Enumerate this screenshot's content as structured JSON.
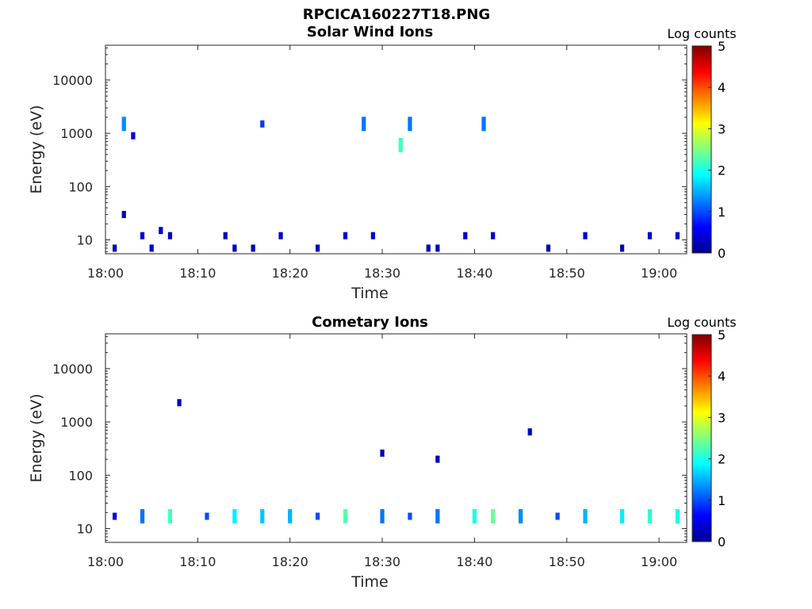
{
  "figure": {
    "title": "RPCICA160227T18.PNG"
  },
  "colorbar_label": "Log counts",
  "colorbar_ticks": [
    "0",
    "1",
    "2",
    "3",
    "4",
    "5"
  ],
  "chart_data": [
    {
      "type": "heatmap",
      "title": "Solar Wind Ions",
      "xlabel": "Time",
      "ylabel": "Energy (eV)",
      "yscale": "log",
      "ylim": [
        5.5,
        45000
      ],
      "xlim": [
        "18:00",
        "19:03"
      ],
      "xticks": [
        "18:00",
        "18:10",
        "18:20",
        "18:30",
        "18:40",
        "18:50",
        "19:00"
      ],
      "yticks": [
        "10",
        "100",
        "1000",
        "10000"
      ],
      "colorbar": {
        "label": "Log counts",
        "range": [
          0,
          5
        ]
      },
      "grid": false,
      "points": [
        {
          "t": "18:01",
          "e": 7,
          "c": 0.3
        },
        {
          "t": "18:02",
          "e": 30,
          "c": 0.3
        },
        {
          "t": "18:02",
          "e": 1500,
          "c": 1.3
        },
        {
          "t": "18:03",
          "e": 900,
          "c": 0.5
        },
        {
          "t": "18:04",
          "e": 12,
          "c": 0.4
        },
        {
          "t": "18:05",
          "e": 7,
          "c": 0.3
        },
        {
          "t": "18:06",
          "e": 15,
          "c": 0.4
        },
        {
          "t": "18:07",
          "e": 12,
          "c": 0.4
        },
        {
          "t": "18:13",
          "e": 12,
          "c": 0.3
        },
        {
          "t": "18:14",
          "e": 7,
          "c": 0.3
        },
        {
          "t": "18:16",
          "e": 7,
          "c": 0.3
        },
        {
          "t": "18:17",
          "e": 1500,
          "c": 0.9
        },
        {
          "t": "18:19",
          "e": 12,
          "c": 0.4
        },
        {
          "t": "18:23",
          "e": 7,
          "c": 0.3
        },
        {
          "t": "18:26",
          "e": 12,
          "c": 0.4
        },
        {
          "t": "18:28",
          "e": 1500,
          "c": 1.2
        },
        {
          "t": "18:29",
          "e": 12,
          "c": 0.4
        },
        {
          "t": "18:32",
          "e": 600,
          "c": 2.2
        },
        {
          "t": "18:33",
          "e": 1500,
          "c": 1.2
        },
        {
          "t": "18:35",
          "e": 7,
          "c": 0.3
        },
        {
          "t": "18:36",
          "e": 7,
          "c": 0.3
        },
        {
          "t": "18:39",
          "e": 12,
          "c": 0.4
        },
        {
          "t": "18:41",
          "e": 1500,
          "c": 1.2
        },
        {
          "t": "18:42",
          "e": 12,
          "c": 0.4
        },
        {
          "t": "18:48",
          "e": 7,
          "c": 0.3
        },
        {
          "t": "18:52",
          "e": 12,
          "c": 0.4
        },
        {
          "t": "18:56",
          "e": 7,
          "c": 0.3
        },
        {
          "t": "18:59",
          "e": 12,
          "c": 0.4
        },
        {
          "t": "19:02",
          "e": 12,
          "c": 0.4
        }
      ]
    },
    {
      "type": "heatmap",
      "title": "Cometary Ions",
      "xlabel": "Time",
      "ylabel": "Energy (eV)",
      "yscale": "log",
      "ylim": [
        5.5,
        45000
      ],
      "xlim": [
        "18:00",
        "19:03"
      ],
      "xticks": [
        "18:00",
        "18:10",
        "18:20",
        "18:30",
        "18:40",
        "18:50",
        "19:00"
      ],
      "yticks": [
        "10",
        "100",
        "1000",
        "10000"
      ],
      "colorbar": {
        "label": "Log counts",
        "range": [
          0,
          5
        ]
      },
      "grid": false,
      "points": [
        {
          "t": "18:01",
          "e": 17,
          "c": 0.5
        },
        {
          "t": "18:04",
          "e": 17,
          "c": 1.2
        },
        {
          "t": "18:07",
          "e": 17,
          "c": 2.2
        },
        {
          "t": "18:08",
          "e": 2300,
          "c": 0.3
        },
        {
          "t": "18:11",
          "e": 17,
          "c": 1.0
        },
        {
          "t": "18:14",
          "e": 17,
          "c": 1.8
        },
        {
          "t": "18:17",
          "e": 17,
          "c": 1.6
        },
        {
          "t": "18:20",
          "e": 17,
          "c": 1.5
        },
        {
          "t": "18:23",
          "e": 17,
          "c": 1.0
        },
        {
          "t": "18:26",
          "e": 17,
          "c": 2.3
        },
        {
          "t": "18:30",
          "e": 17,
          "c": 1.2
        },
        {
          "t": "18:30",
          "e": 260,
          "c": 0.3
        },
        {
          "t": "18:33",
          "e": 17,
          "c": 1.0
        },
        {
          "t": "18:36",
          "e": 17,
          "c": 1.2
        },
        {
          "t": "18:36",
          "e": 200,
          "c": 0.3
        },
        {
          "t": "18:40",
          "e": 17,
          "c": 2.0
        },
        {
          "t": "18:42",
          "e": 17,
          "c": 2.4
        },
        {
          "t": "18:45",
          "e": 17,
          "c": 1.3
        },
        {
          "t": "18:46",
          "e": 650,
          "c": 0.3
        },
        {
          "t": "18:49",
          "e": 17,
          "c": 1.0
        },
        {
          "t": "18:52",
          "e": 17,
          "c": 1.5
        },
        {
          "t": "18:56",
          "e": 17,
          "c": 1.8
        },
        {
          "t": "18:59",
          "e": 17,
          "c": 2.1
        },
        {
          "t": "19:02",
          "e": 17,
          "c": 2.0
        }
      ]
    }
  ]
}
